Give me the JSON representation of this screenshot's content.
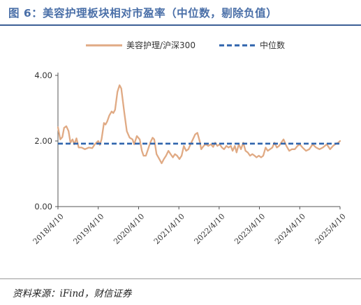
{
  "title": "图 6：美容护理板块相对市盈率（中位数，剔除负值）",
  "source": "资料来源：iFind，财信证券",
  "colors": {
    "title": "#4a6fa8",
    "series": "#e0aa84",
    "median": "#2f64ad"
  },
  "chart_data": {
    "type": "line",
    "title": "",
    "xlabel": "",
    "ylabel": "",
    "ylim": [
      0,
      4
    ],
    "yticks": [
      {
        "value": 0,
        "label": "0.00"
      },
      {
        "value": 2,
        "label": "2.00"
      },
      {
        "value": 4,
        "label": "4.00"
      }
    ],
    "xlim": [
      "2018-04-10",
      "2025-04-10"
    ],
    "xticks": [
      {
        "date": "2018-04-10",
        "label": "2018/4/10"
      },
      {
        "date": "2019-04-10",
        "label": "2019/4/10"
      },
      {
        "date": "2020-04-10",
        "label": "2020/4/10"
      },
      {
        "date": "2021-04-10",
        "label": "2021/4/10"
      },
      {
        "date": "2022-04-10",
        "label": "2022/4/10"
      },
      {
        "date": "2023-04-10",
        "label": "2023/4/10"
      },
      {
        "date": "2024-04-10",
        "label": "2024/4/10"
      },
      {
        "date": "2025-04-10",
        "label": "2025/4/10"
      }
    ],
    "grid": false,
    "legend_position": "top-center",
    "series": [
      {
        "name": "美容护理/沪深300",
        "style": "solid",
        "color": "#e0aa84",
        "points": [
          [
            "2018-04-10",
            2.42
          ],
          [
            "2018-05-01",
            2.05
          ],
          [
            "2018-05-20",
            2.12
          ],
          [
            "2018-06-05",
            2.4
          ],
          [
            "2018-06-25",
            2.45
          ],
          [
            "2018-07-15",
            2.3
          ],
          [
            "2018-08-01",
            1.95
          ],
          [
            "2018-08-20",
            2.05
          ],
          [
            "2018-09-05",
            1.9
          ],
          [
            "2018-09-25",
            2.08
          ],
          [
            "2018-10-15",
            1.8
          ],
          [
            "2018-11-10",
            1.8
          ],
          [
            "2018-12-10",
            1.75
          ],
          [
            "2019-01-15",
            1.8
          ],
          [
            "2019-02-15",
            1.78
          ],
          [
            "2019-03-10",
            1.9
          ],
          [
            "2019-04-10",
            2.0
          ],
          [
            "2019-04-25",
            1.88
          ],
          [
            "2019-05-10",
            2.05
          ],
          [
            "2019-06-01",
            2.55
          ],
          [
            "2019-06-15",
            2.5
          ],
          [
            "2019-07-01",
            2.6
          ],
          [
            "2019-07-20",
            2.78
          ],
          [
            "2019-08-10",
            2.9
          ],
          [
            "2019-08-25",
            2.85
          ],
          [
            "2019-09-10",
            2.95
          ],
          [
            "2019-10-01",
            3.5
          ],
          [
            "2019-10-20",
            3.7
          ],
          [
            "2019-11-05",
            3.6
          ],
          [
            "2019-12-01",
            2.9
          ],
          [
            "2019-12-25",
            2.3
          ],
          [
            "2020-01-20",
            2.1
          ],
          [
            "2020-02-15",
            2.05
          ],
          [
            "2020-03-01",
            1.9
          ],
          [
            "2020-03-25",
            2.15
          ],
          [
            "2020-04-20",
            2.05
          ],
          [
            "2020-05-10",
            1.7
          ],
          [
            "2020-05-25",
            1.55
          ],
          [
            "2020-06-15",
            1.55
          ],
          [
            "2020-07-05",
            1.75
          ],
          [
            "2020-07-25",
            1.95
          ],
          [
            "2020-08-15",
            2.1
          ],
          [
            "2020-08-30",
            2.05
          ],
          [
            "2020-09-20",
            1.6
          ],
          [
            "2020-10-15",
            1.45
          ],
          [
            "2020-11-05",
            1.32
          ],
          [
            "2020-11-25",
            1.45
          ],
          [
            "2020-12-15",
            1.55
          ],
          [
            "2021-01-05",
            1.7
          ],
          [
            "2021-01-25",
            1.6
          ],
          [
            "2021-02-15",
            1.5
          ],
          [
            "2021-03-05",
            1.6
          ],
          [
            "2021-03-25",
            1.55
          ],
          [
            "2021-04-15",
            1.45
          ],
          [
            "2021-05-05",
            1.55
          ],
          [
            "2021-05-25",
            1.85
          ],
          [
            "2021-06-15",
            1.7
          ],
          [
            "2021-07-05",
            1.75
          ],
          [
            "2021-07-25",
            1.9
          ],
          [
            "2021-08-15",
            2.05
          ],
          [
            "2021-09-05",
            2.2
          ],
          [
            "2021-09-25",
            2.25
          ],
          [
            "2021-10-15",
            2.0
          ],
          [
            "2021-10-30",
            1.75
          ],
          [
            "2021-11-20",
            1.85
          ],
          [
            "2021-12-10",
            1.9
          ],
          [
            "2022-01-01",
            1.85
          ],
          [
            "2022-01-25",
            1.9
          ],
          [
            "2022-02-15",
            1.82
          ],
          [
            "2022-03-05",
            1.95
          ],
          [
            "2022-03-25",
            1.85
          ],
          [
            "2022-04-15",
            1.9
          ],
          [
            "2022-05-05",
            1.8
          ],
          [
            "2022-05-25",
            1.75
          ],
          [
            "2022-06-15",
            1.85
          ],
          [
            "2022-07-05",
            1.8
          ],
          [
            "2022-07-25",
            1.85
          ],
          [
            "2022-08-10",
            1.7
          ],
          [
            "2022-08-30",
            1.85
          ],
          [
            "2022-09-15",
            1.65
          ],
          [
            "2022-10-05",
            1.9
          ],
          [
            "2022-10-25",
            1.75
          ],
          [
            "2022-11-15",
            1.95
          ],
          [
            "2022-12-05",
            1.7
          ],
          [
            "2022-12-25",
            1.65
          ],
          [
            "2023-01-15",
            1.55
          ],
          [
            "2023-02-05",
            1.6
          ],
          [
            "2023-02-25",
            1.55
          ],
          [
            "2023-03-15",
            1.5
          ],
          [
            "2023-04-05",
            1.55
          ],
          [
            "2023-04-25",
            1.5
          ],
          [
            "2023-05-15",
            1.55
          ],
          [
            "2023-06-05",
            1.8
          ],
          [
            "2023-06-25",
            1.7
          ],
          [
            "2023-07-15",
            1.75
          ],
          [
            "2023-08-05",
            1.8
          ],
          [
            "2023-08-25",
            1.95
          ],
          [
            "2023-09-15",
            1.8
          ],
          [
            "2023-10-05",
            1.85
          ],
          [
            "2023-10-25",
            1.95
          ],
          [
            "2023-11-15",
            2.05
          ],
          [
            "2023-12-10",
            1.85
          ],
          [
            "2024-01-05",
            1.7
          ],
          [
            "2024-01-30",
            1.75
          ],
          [
            "2024-02-25",
            1.75
          ],
          [
            "2024-03-20",
            1.85
          ],
          [
            "2024-04-10",
            1.9
          ],
          [
            "2024-05-05",
            1.8
          ],
          [
            "2024-06-05",
            1.7
          ],
          [
            "2024-07-05",
            1.75
          ],
          [
            "2024-08-05",
            1.9
          ],
          [
            "2024-09-05",
            1.8
          ],
          [
            "2024-10-05",
            1.75
          ],
          [
            "2024-11-05",
            1.8
          ],
          [
            "2024-12-10",
            1.9
          ],
          [
            "2025-01-10",
            1.75
          ],
          [
            "2025-02-05",
            1.85
          ],
          [
            "2025-03-05",
            1.92
          ],
          [
            "2025-03-25",
            1.95
          ],
          [
            "2025-04-10",
            2.0
          ]
        ]
      },
      {
        "name": "中位数",
        "style": "dashed",
        "color": "#2f64ad",
        "points": [
          [
            "2018-04-10",
            1.92
          ],
          [
            "2025-04-10",
            1.92
          ]
        ]
      }
    ]
  }
}
